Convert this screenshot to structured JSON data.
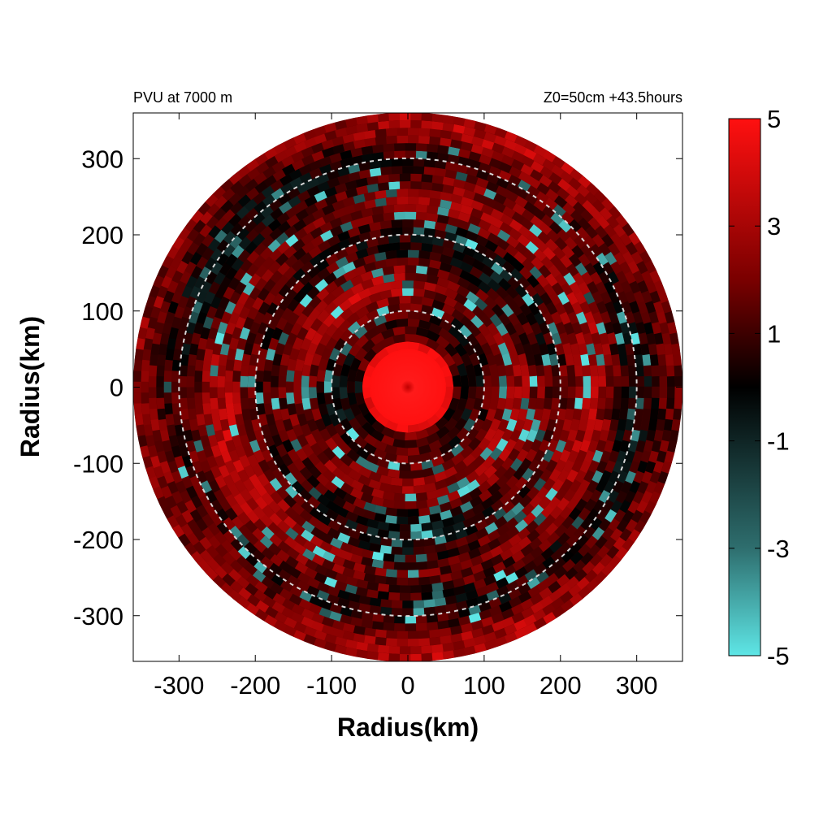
{
  "header": {
    "left_label": "PVU at  7000 m",
    "right_label": "Z0=50cm  +43.5hours"
  },
  "chart_data": {
    "type": "heatmap",
    "title": "",
    "xlabel": "Radius(km)",
    "ylabel": "Radius(km)",
    "xlim": [
      -360,
      360
    ],
    "ylim": [
      -360,
      360
    ],
    "x_ticks": [
      -300,
      -200,
      -100,
      0,
      100,
      200,
      300
    ],
    "y_ticks": [
      300,
      200,
      100,
      0,
      -100,
      -200,
      -300
    ],
    "domain_radius_km": 360,
    "reference_circles_km": [
      100,
      200,
      300
    ],
    "eye_center_km": [
      0,
      0
    ],
    "eye_core_radius_km": 50,
    "colorbar": {
      "range": [
        -5,
        5
      ],
      "ticks": [
        5,
        3,
        1,
        -1,
        -3,
        -5
      ],
      "colors": [
        {
          "value": -5,
          "color": "#5ee6e6"
        },
        {
          "value": -3,
          "color": "#2e6e6e"
        },
        {
          "value": 0,
          "color": "#000000"
        },
        {
          "value": 2,
          "color": "#7a0000"
        },
        {
          "value": 5,
          "color": "#ff1010"
        }
      ]
    },
    "grid": false,
    "legend": "right colorbar"
  }
}
